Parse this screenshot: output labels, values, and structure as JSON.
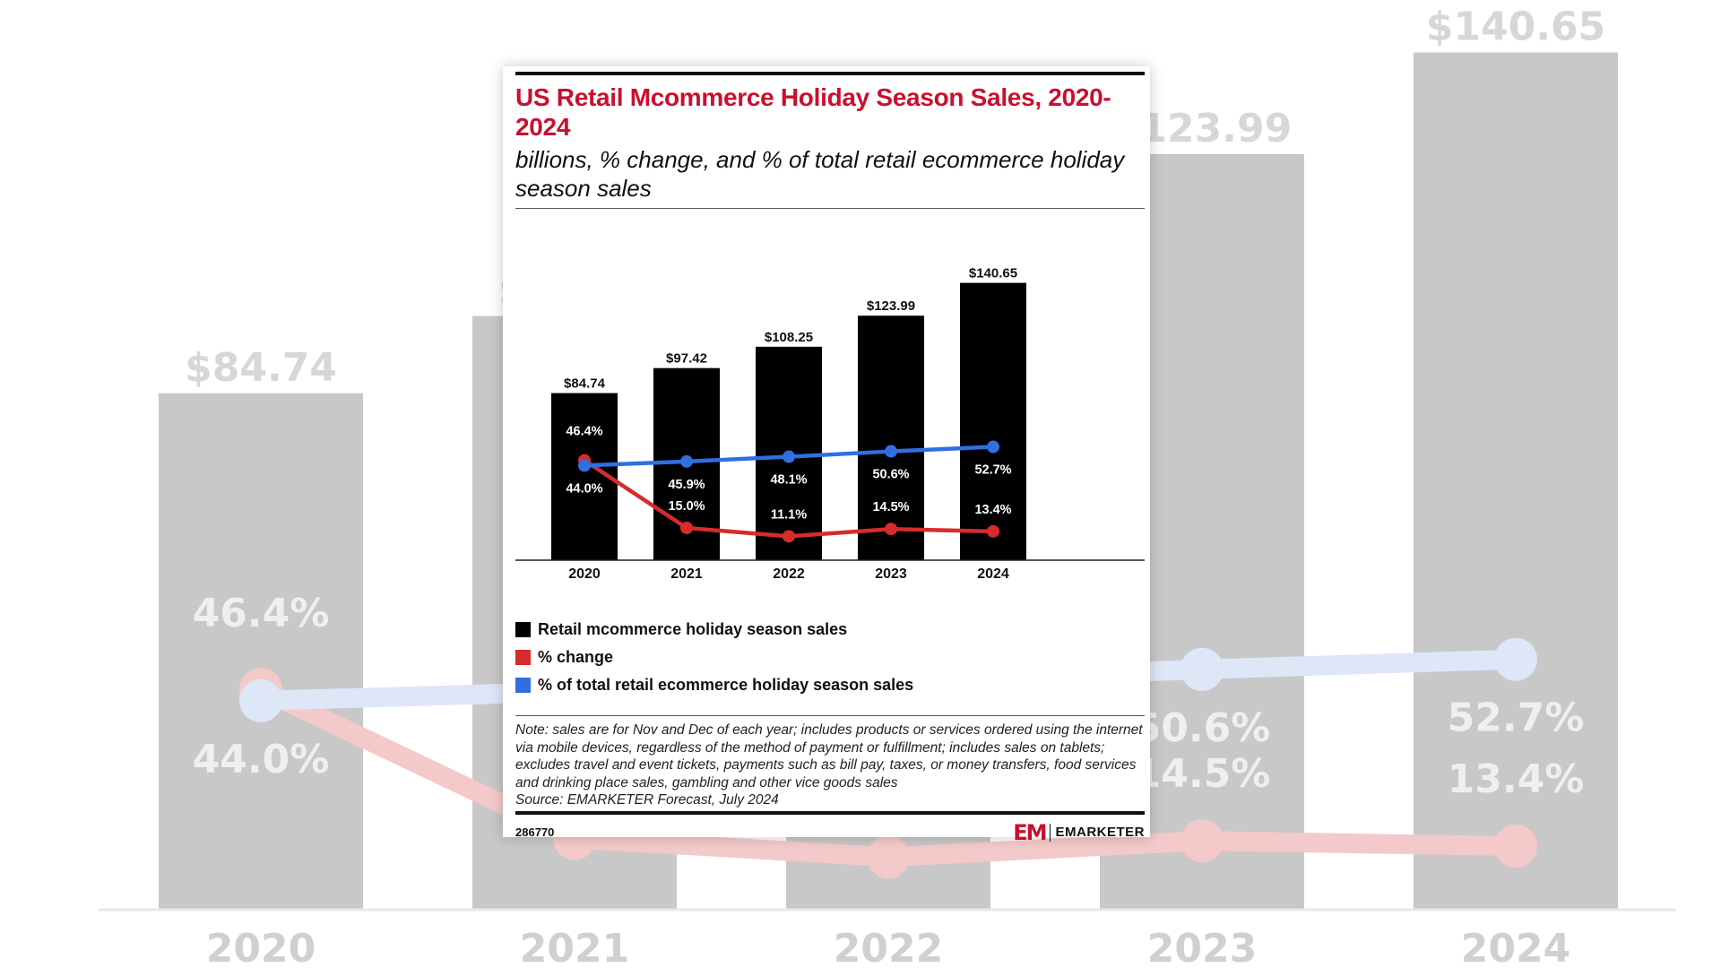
{
  "title": "US Retail Mcommerce Holiday Season Sales, 2020-2024",
  "subtitle": "billions, % change, and % of total retail ecommerce holiday season sales",
  "legend": [
    {
      "label": "Retail mcommerce holiday season sales",
      "color": "#000000"
    },
    {
      "label": "% change",
      "color": "#d62c2c"
    },
    {
      "label": "% of total retail ecommerce holiday season sales",
      "color": "#2f6fe0"
    }
  ],
  "note": "Note: sales are for Nov and Dec of each year; includes products or services ordered using the internet via mobile devices, regardless of the method of payment or fulfillment; includes sales on tablets; excludes travel and event tickets, payments such as bill pay, taxes, or money transfers, food services and drinking place sales, gambling and other vice goods sales",
  "source": "Source: EMARKETER Forecast, July 2024",
  "chart_id": "286770",
  "brand": {
    "mark": "EM",
    "name": "EMARKETER"
  },
  "colors": {
    "bar": "#000000",
    "change": "#d62c2c",
    "share": "#2f6fe0",
    "title": "#c8102e"
  },
  "chart_data": {
    "type": "bar",
    "categories": [
      "2020",
      "2021",
      "2022",
      "2023",
      "2024"
    ],
    "series": [
      {
        "name": "Retail mcommerce holiday season sales",
        "type": "bar",
        "values": [
          84.74,
          97.42,
          108.25,
          123.99,
          140.65
        ],
        "labels": [
          "$84.74",
          "$97.42",
          "$108.25",
          "$123.99",
          "$140.65"
        ]
      },
      {
        "name": "% change",
        "type": "line",
        "values": [
          46.4,
          15.0,
          11.1,
          14.5,
          13.4
        ],
        "labels": [
          "46.4%",
          "15.0%",
          "11.1%",
          "14.5%",
          "13.4%"
        ]
      },
      {
        "name": "% of total retail ecommerce holiday season sales",
        "type": "line",
        "values": [
          44.0,
          45.9,
          48.1,
          50.6,
          52.7
        ],
        "labels": [
          "44.0%",
          "45.9%",
          "48.1%",
          "50.6%",
          "52.7%"
        ]
      }
    ]
  }
}
